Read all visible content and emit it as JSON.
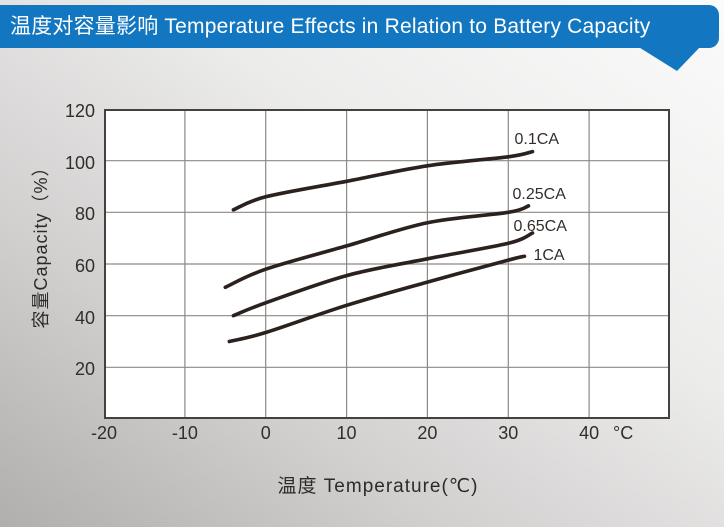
{
  "header": {
    "title": "温度对容量影响 Temperature Effects in Relation to Battery Capacity",
    "bg_color": "#1277c0",
    "text_color": "#ffffff"
  },
  "chart_data": {
    "type": "line",
    "title": "温度对容量影响 Temperature Effects in Relation to Battery Capacity",
    "xlabel": "温度  Temperature(℃)",
    "ylabel": "容量Capacity（%）",
    "x_unit": "°C",
    "xlim": [
      -20,
      50
    ],
    "ylim": [
      0,
      120
    ],
    "x_ticks": [
      -20,
      -10,
      0,
      10,
      20,
      30,
      40
    ],
    "y_ticks": [
      120,
      100,
      80,
      60,
      40,
      20
    ],
    "grid": true,
    "legend_position": "inline-right",
    "line_color": "#2b211e",
    "colors": {
      "grid": "#8c8987",
      "border": "#46403e",
      "plot_bg": "#ffffff"
    },
    "series": [
      {
        "name": "0.1CA",
        "points": [
          [
            -4,
            81
          ],
          [
            0,
            86
          ],
          [
            10,
            92
          ],
          [
            20,
            98
          ],
          [
            30,
            101.5
          ],
          [
            33,
            103.5
          ]
        ]
      },
      {
        "name": "0.25CA",
        "points": [
          [
            -5,
            51
          ],
          [
            0,
            58
          ],
          [
            10,
            67
          ],
          [
            20,
            76
          ],
          [
            30,
            80
          ],
          [
            32.5,
            82.5
          ]
        ]
      },
      {
        "name": "0.65CA",
        "points": [
          [
            -4,
            40
          ],
          [
            0,
            45
          ],
          [
            10,
            55.5
          ],
          [
            20,
            62
          ],
          [
            30,
            68
          ],
          [
            33,
            72
          ]
        ]
      },
      {
        "name": "1CA",
        "points": [
          [
            -4.5,
            30
          ],
          [
            0,
            33.5
          ],
          [
            10,
            44
          ],
          [
            20,
            53
          ],
          [
            30,
            61.5
          ],
          [
            32,
            63
          ]
        ]
      }
    ]
  }
}
